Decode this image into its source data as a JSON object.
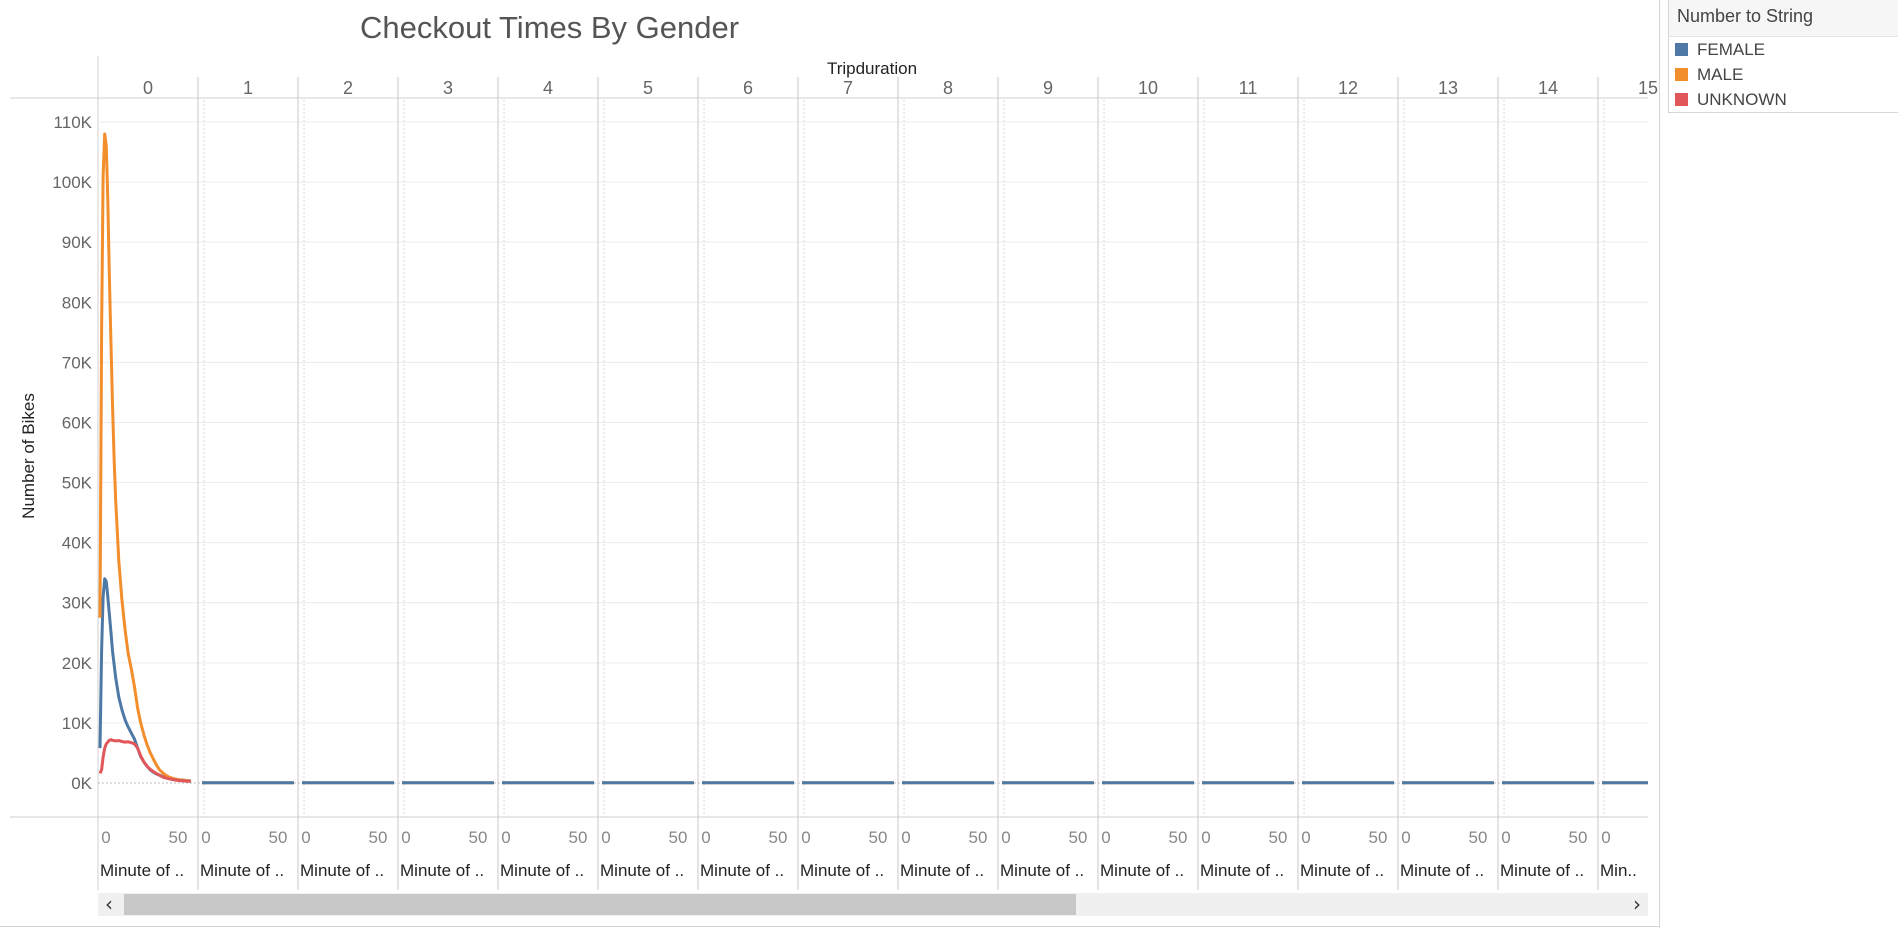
{
  "chart_data": {
    "type": "line",
    "title": "Checkout Times By Gender",
    "column_header": "Tripduration",
    "ylabel": "Number of Bikes",
    "ylim": [
      0,
      110000
    ],
    "y_ticks": [
      0,
      10000,
      20000,
      30000,
      40000,
      50000,
      60000,
      70000,
      80000,
      90000,
      100000,
      110000
    ],
    "y_tick_labels": [
      "0K",
      "10K",
      "20K",
      "30K",
      "40K",
      "50K",
      "60K",
      "70K",
      "80K",
      "90K",
      "100K",
      "110K"
    ],
    "panels": [
      "0",
      "1",
      "2",
      "3",
      "4",
      "5",
      "6",
      "7",
      "8",
      "9",
      "10",
      "11",
      "12",
      "13",
      "14",
      "15"
    ],
    "panel_x_ticks": [
      0,
      50
    ],
    "panel_x_tick_labels": [
      "0",
      "50"
    ],
    "panel_xlabels": [
      "Minute of ..",
      "Minute of ..",
      "Minute of ..",
      "Minute of ..",
      "Minute of ..",
      "Minute of ..",
      "Minute of ..",
      "Minute of ..",
      "Minute of ..",
      "Minute of ..",
      "Minute of ..",
      "Minute of ..",
      "Minute of ..",
      "Minute of ..",
      "Minute of ..",
      "Min.."
    ],
    "grid": true,
    "legend": {
      "title": "Number to String",
      "position": "top-right"
    },
    "series": [
      {
        "name": "FEMALE",
        "color": "#4e79a7",
        "panel0": {
          "x": [
            0,
            1,
            2,
            3,
            4,
            5,
            6,
            7,
            8,
            10,
            12,
            14,
            16,
            18,
            20,
            22,
            24,
            26,
            28,
            30,
            32,
            34,
            36,
            38,
            40,
            42,
            44,
            46,
            48,
            50,
            52,
            54,
            56,
            58
          ],
          "y": [
            5800,
            22000,
            31000,
            34000,
            33500,
            31000,
            28000,
            25000,
            22000,
            17500,
            14300,
            12200,
            10500,
            9300,
            8300,
            7300,
            5800,
            4400,
            3500,
            2800,
            2200,
            1800,
            1500,
            1300,
            1100,
            950,
            850,
            750,
            650,
            560,
            500,
            450,
            400,
            350
          ]
        },
        "panel_level": 50,
        "flat_panels": [
          1,
          2,
          3,
          4,
          5,
          6,
          7,
          8,
          9,
          10,
          11,
          12,
          13,
          14,
          15
        ]
      },
      {
        "name": "MALE",
        "color": "#f28e2b",
        "panel0": {
          "x": [
            0,
            1,
            2,
            3,
            4,
            5,
            6,
            7,
            8,
            9,
            10,
            12,
            14,
            16,
            18,
            20,
            22,
            24,
            26,
            28,
            30,
            32,
            34,
            36,
            38,
            40,
            42,
            44,
            46,
            48,
            50,
            52,
            54,
            56,
            58
          ],
          "y": [
            27500,
            75000,
            101000,
            108000,
            106000,
            97000,
            84000,
            73000,
            63000,
            54000,
            47000,
            37000,
            30500,
            25500,
            21500,
            19000,
            16000,
            12500,
            10000,
            8000,
            6400,
            5100,
            4000,
            3000,
            2200,
            1700,
            1300,
            1000,
            800,
            650,
            550,
            480,
            430,
            380,
            340
          ]
        },
        "panel_level": 50,
        "flat_panels": [
          1,
          2,
          3,
          4,
          5,
          6,
          7,
          8,
          9,
          10,
          11,
          12,
          13,
          14,
          15
        ]
      },
      {
        "name": "UNKNOWN",
        "color": "#e15759",
        "panel0": {
          "x": [
            0,
            1,
            2,
            3,
            4,
            5,
            6,
            7,
            8,
            10,
            12,
            14,
            16,
            18,
            20,
            22,
            24,
            26,
            28,
            30,
            32,
            34,
            36,
            38,
            40,
            42,
            44,
            46,
            48,
            50,
            52,
            54,
            56,
            58
          ],
          "y": [
            1600,
            2200,
            4300,
            5800,
            6500,
            6800,
            7100,
            7200,
            7100,
            7000,
            7050,
            6900,
            6800,
            6850,
            6700,
            6500,
            5800,
            4500,
            3500,
            2800,
            2300,
            1900,
            1600,
            1300,
            1000,
            850,
            700,
            600,
            500,
            420,
            380,
            340,
            300,
            270
          ]
        },
        "panel_level": 20,
        "flat_panels": []
      }
    ]
  }
}
